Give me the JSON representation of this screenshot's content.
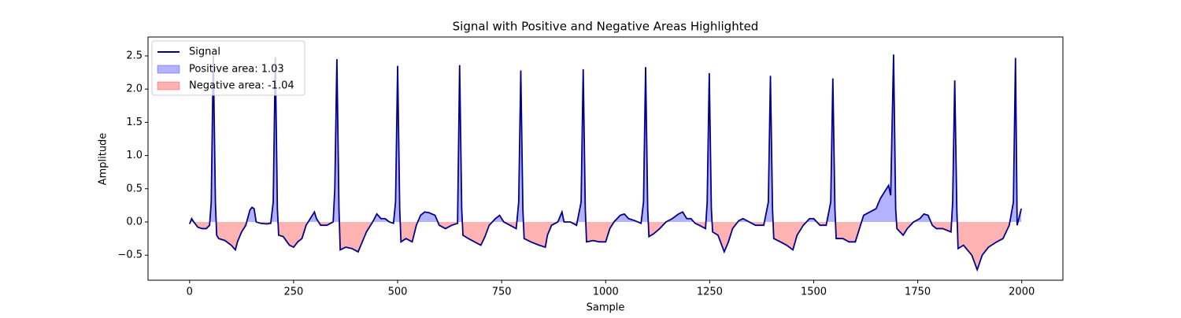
{
  "chart_data": {
    "type": "line",
    "title": "Signal with Positive and Negative Areas Highlighted",
    "x_label": "Sample",
    "y_label": "Amplitude",
    "xlim": [
      -99.95,
      2098.95
    ],
    "ylim": [
      -0.877,
      2.784
    ],
    "xticks": [
      0,
      250,
      500,
      750,
      1000,
      1250,
      1500,
      1750,
      2000
    ],
    "yticks": [
      {
        "value": -0.5,
        "label": "−0.5"
      },
      {
        "value": 0,
        "label": "0.0"
      },
      {
        "value": 0.5,
        "label": "0.5"
      },
      {
        "value": 1,
        "label": "1.0"
      },
      {
        "value": 1.5,
        "label": "1.5"
      },
      {
        "value": 2,
        "label": "2.0"
      },
      {
        "value": 2.5,
        "label": "2.5"
      }
    ],
    "legend": "upper left",
    "x": [
      0,
      5,
      10,
      20,
      30,
      40,
      48,
      52,
      57,
      62,
      65,
      70,
      85,
      100,
      110,
      115,
      125,
      135,
      145,
      150,
      155,
      160,
      170,
      185,
      195,
      201,
      206,
      211,
      214,
      225,
      240,
      250,
      260,
      270,
      280,
      290,
      300,
      305,
      315,
      330,
      345,
      349,
      354,
      359,
      362,
      375,
      390,
      405,
      415,
      425,
      440,
      450,
      460,
      470,
      480,
      490,
      495,
      500,
      505,
      508,
      520,
      535,
      545,
      555,
      565,
      575,
      590,
      600,
      615,
      630,
      644,
      649,
      654,
      657,
      670,
      685,
      700,
      710,
      720,
      735,
      745,
      755,
      770,
      785,
      791,
      796,
      801,
      804,
      820,
      840,
      855,
      860,
      870,
      885,
      895,
      900,
      915,
      930,
      941,
      946,
      951,
      954,
      970,
      985,
      1000,
      1010,
      1020,
      1035,
      1045,
      1055,
      1070,
      1085,
      1091,
      1096,
      1101,
      1104,
      1115,
      1130,
      1145,
      1160,
      1175,
      1185,
      1195,
      1205,
      1215,
      1225,
      1240,
      1244,
      1249,
      1254,
      1257,
      1270,
      1285,
      1295,
      1305,
      1320,
      1330,
      1345,
      1360,
      1380,
      1391,
      1396,
      1401,
      1404,
      1420,
      1435,
      1450,
      1460,
      1475,
      1490,
      1500,
      1515,
      1530,
      1541,
      1546,
      1551,
      1554,
      1570,
      1585,
      1600,
      1610,
      1620,
      1635,
      1650,
      1660,
      1670,
      1680,
      1685,
      1692,
      1697,
      1700,
      1715,
      1725,
      1740,
      1755,
      1765,
      1775,
      1785,
      1795,
      1810,
      1830,
      1834,
      1839,
      1844,
      1847,
      1860,
      1880,
      1893,
      1905,
      1920,
      1940,
      1955,
      1970,
      1980,
      1985,
      1989,
      1995,
      1999
    ],
    "series": [
      {
        "name": "Signal",
        "color": "#00008b",
        "values": [
          -0.03,
          0.05,
          0.0,
          -0.08,
          -0.1,
          -0.1,
          -0.05,
          0.3,
          2.5,
          0.3,
          -0.2,
          -0.25,
          -0.28,
          -0.35,
          -0.42,
          -0.3,
          -0.15,
          -0.05,
          0.18,
          0.22,
          0.2,
          0.0,
          -0.02,
          -0.03,
          -0.02,
          0.3,
          2.48,
          0.2,
          -0.2,
          -0.22,
          -0.35,
          -0.38,
          -0.3,
          -0.25,
          -0.05,
          0.05,
          0.15,
          0.05,
          -0.05,
          -0.05,
          0.0,
          0.5,
          2.45,
          0.2,
          -0.42,
          -0.38,
          -0.4,
          -0.45,
          -0.3,
          -0.15,
          0.0,
          0.12,
          0.05,
          0.05,
          0.0,
          -0.02,
          0.3,
          2.35,
          0.2,
          -0.3,
          -0.25,
          -0.3,
          -0.05,
          0.1,
          0.15,
          0.14,
          0.1,
          -0.05,
          -0.1,
          -0.05,
          -0.02,
          2.36,
          0.2,
          -0.2,
          -0.25,
          -0.3,
          -0.35,
          -0.22,
          -0.05,
          0.05,
          0.1,
          0.0,
          -0.05,
          -0.1,
          0.3,
          2.28,
          0.2,
          -0.25,
          -0.3,
          -0.35,
          -0.38,
          -0.2,
          -0.05,
          0.0,
          0.15,
          0.0,
          0.0,
          -0.05,
          0.3,
          2.3,
          0.2,
          -0.3,
          -0.28,
          -0.3,
          -0.3,
          -0.1,
          0.0,
          0.1,
          0.12,
          0.05,
          0.02,
          -0.02,
          0.3,
          2.33,
          0.2,
          -0.22,
          -0.18,
          -0.1,
          0.0,
          0.05,
          0.12,
          0.15,
          0.05,
          0.05,
          -0.02,
          -0.05,
          -0.1,
          0.3,
          2.24,
          0.2,
          -0.15,
          -0.2,
          -0.45,
          -0.3,
          -0.1,
          0.02,
          0.05,
          0.0,
          -0.05,
          -0.05,
          0.3,
          2.2,
          0.2,
          -0.25,
          -0.3,
          -0.35,
          -0.42,
          -0.2,
          -0.05,
          0.05,
          0.05,
          -0.05,
          -0.05,
          0.3,
          2.16,
          0.2,
          -0.25,
          -0.25,
          -0.3,
          -0.3,
          -0.1,
          0.1,
          0.15,
          0.2,
          0.35,
          0.45,
          0.55,
          0.4,
          2.52,
          0.2,
          -0.1,
          -0.2,
          -0.1,
          0.0,
          0.05,
          0.12,
          0.1,
          -0.05,
          -0.1,
          -0.1,
          -0.15,
          0.3,
          2.13,
          0.2,
          -0.4,
          -0.35,
          -0.5,
          -0.72,
          -0.5,
          -0.38,
          -0.3,
          -0.25,
          -0.05,
          0.3,
          2.47,
          -0.05,
          0.1,
          0.2
        ]
      }
    ],
    "fills": [
      {
        "name": "Positive area: 1.03",
        "color": "#0000ff",
        "side": "positive"
      },
      {
        "name": "Negative area: -1.04",
        "color": "#ff0000",
        "side": "negative"
      }
    ]
  }
}
